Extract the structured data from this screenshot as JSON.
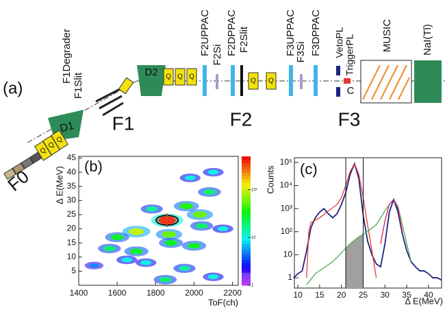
{
  "diagram": {
    "panel_label": "(a)",
    "labels": {
      "f0": "F0",
      "d1": "D1",
      "f1_degrader": "F1Degrader",
      "f1_slit": "F1Slit",
      "f1": "F1",
      "d2": "D2",
      "f2_uppac": "F2UPPAC",
      "f2_si": "F2Si",
      "f2_dppac": "F2DPPAC",
      "f2_slit": "F2Slit",
      "f2": "F2",
      "f3_uppac": "F3UPPAC",
      "f3_si": "F3Si",
      "f3_dppac": "F3DPPAC",
      "veto_pl": "VetoPL",
      "trigger_pl": "TriggerPL",
      "c": "C",
      "music": "MUSIC",
      "nai": "NaI(Tl)",
      "f3": "F3"
    },
    "quads": [
      "Q",
      "Q",
      "Q",
      "Q",
      "Q",
      "Q",
      "Q",
      "Q"
    ]
  },
  "chart_data": [
    {
      "type": "heatmap",
      "panel_label": "(b)",
      "xlabel": "ToF(ch)",
      "ylabel": "Δ E(MeV)",
      "xlim": [
        1400,
        2230
      ],
      "xticks": [
        1400,
        1600,
        1800,
        2000,
        2200
      ],
      "ylim": [
        0,
        45.6
      ],
      "yticks": [
        5,
        10,
        15,
        20,
        25,
        30,
        35,
        40,
        45
      ],
      "zlim": [
        1,
        500
      ],
      "zticks": [
        1,
        10,
        {
          "value": 100,
          "label": "10²"
        }
      ],
      "log_z": true,
      "x": [
        1860,
        1700,
        1600,
        1870,
        2030,
        1960,
        2000,
        1880,
        1560,
        1700,
        2080,
        1980,
        2100,
        2150,
        1750,
        1950,
        2100,
        1850,
        1650,
        1480,
        1780,
        2040
      ],
      "y": [
        23,
        19,
        17,
        18,
        25,
        28,
        14,
        15,
        13,
        12,
        33,
        38,
        40,
        20,
        8,
        6,
        3,
        2,
        9,
        7,
        27,
        21
      ],
      "values": [
        400,
        100,
        30,
        60,
        60,
        40,
        30,
        30,
        20,
        30,
        20,
        10,
        10,
        10,
        10,
        15,
        10,
        20,
        10,
        5,
        15,
        20
      ]
    },
    {
      "type": "line",
      "panel_label": "(c)",
      "xlabel": "Δ E(MeV)",
      "ylabel": "Counts",
      "log_y": true,
      "xlim": [
        9.2,
        43
      ],
      "xticks": [
        10,
        15,
        20,
        25,
        30,
        35,
        40
      ],
      "ylim": [
        0.36,
        160000
      ],
      "yticks": [
        1,
        10,
        {
          "value": 100,
          "label": "10²"
        },
        {
          "value": 1000,
          "label": "10³"
        },
        {
          "value": 10000,
          "label": "10⁴"
        },
        {
          "value": 100000,
          "label": "10⁵"
        }
      ],
      "vlines": [
        21,
        25
      ],
      "shade_color": "#a0a0a0",
      "series": [
        {
          "color": "#1a237e",
          "x": [
            9,
            10,
            11,
            12,
            13,
            14,
            15,
            16,
            17,
            18,
            19,
            20,
            21,
            22,
            23,
            24,
            25,
            26,
            27,
            28,
            29,
            30,
            31,
            32,
            33,
            34,
            35,
            36,
            37,
            38,
            39,
            40,
            41,
            42,
            43
          ],
          "values": [
            1,
            1.5,
            2,
            15,
            150,
            400,
            700,
            1000,
            600,
            400,
            600,
            1500,
            5000,
            30000,
            90000,
            20000,
            500,
            40,
            10,
            4,
            3,
            30,
            700,
            2500,
            700,
            80,
            15,
            5,
            3,
            2,
            2,
            1.5,
            1,
            1,
            0.8
          ]
        },
        {
          "color": "#e53935",
          "x": [
            12,
            12.5,
            13,
            15,
            17,
            19,
            20,
            21,
            22,
            23,
            24,
            25,
            26,
            27,
            28
          ],
          "values": [
            1,
            100,
            250,
            400,
            800,
            1500,
            3000,
            10000,
            40000,
            90000,
            30000,
            3000,
            200,
            15,
            1
          ]
        },
        {
          "color": "#4caf50",
          "x": [
            12,
            14,
            18,
            20,
            22,
            24,
            26,
            28,
            30,
            31,
            32,
            33,
            34,
            35,
            36
          ],
          "values": [
            0.5,
            1.5,
            5,
            12,
            30,
            60,
            100,
            200,
            800,
            1500,
            2500,
            1200,
            200,
            30,
            5
          ]
        },
        {
          "color": "#d81b60",
          "x": [
            29,
            30,
            31,
            32,
            33,
            34
          ],
          "values": [
            30,
            300,
            1500,
            2500,
            1000,
            100
          ]
        }
      ]
    }
  ]
}
